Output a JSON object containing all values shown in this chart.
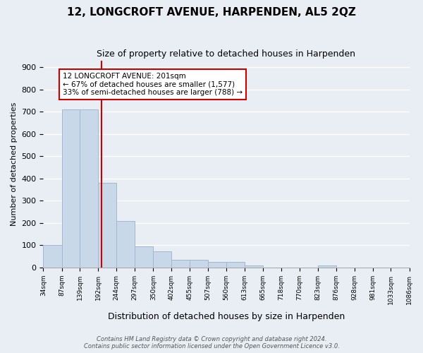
{
  "title": "12, LONGCROFT AVENUE, HARPENDEN, AL5 2QZ",
  "subtitle": "Size of property relative to detached houses in Harpenden",
  "xlabel": "Distribution of detached houses by size in Harpenden",
  "ylabel": "Number of detached properties",
  "bar_edges": [
    34,
    87,
    139,
    192,
    244,
    297,
    350,
    402,
    455,
    507,
    560,
    613,
    665,
    718,
    770,
    823,
    876,
    928,
    981,
    1033,
    1086
  ],
  "bar_heights": [
    100,
    710,
    710,
    380,
    210,
    95,
    72,
    35,
    35,
    25,
    25,
    10,
    0,
    0,
    0,
    10,
    0,
    0,
    0,
    0
  ],
  "bar_color": "#c8d8e8",
  "bar_edge_color": "#a0b8d0",
  "property_line_x": 201,
  "property_line_color": "#cc0000",
  "annotation_line1": "12 LONGCROFT AVENUE: 201sqm",
  "annotation_line2": "← 67% of detached houses are smaller (1,577)",
  "annotation_line3": "33% of semi-detached houses are larger (788) →",
  "annotation_box_color": "white",
  "annotation_box_edge_color": "#cc0000",
  "ylim": [
    0,
    930
  ],
  "yticks": [
    0,
    100,
    200,
    300,
    400,
    500,
    600,
    700,
    800,
    900
  ],
  "tick_labels": [
    "34sqm",
    "87sqm",
    "139sqm",
    "192sqm",
    "244sqm",
    "297sqm",
    "350sqm",
    "402sqm",
    "455sqm",
    "507sqm",
    "560sqm",
    "613sqm",
    "665sqm",
    "718sqm",
    "770sqm",
    "823sqm",
    "876sqm",
    "928sqm",
    "981sqm",
    "1033sqm",
    "1086sqm"
  ],
  "footer_text": "Contains HM Land Registry data © Crown copyright and database right 2024.\nContains public sector information licensed under the Open Government Licence v3.0.",
  "bg_color": "#e8eef4",
  "plot_bg_color": "#e8eef4"
}
